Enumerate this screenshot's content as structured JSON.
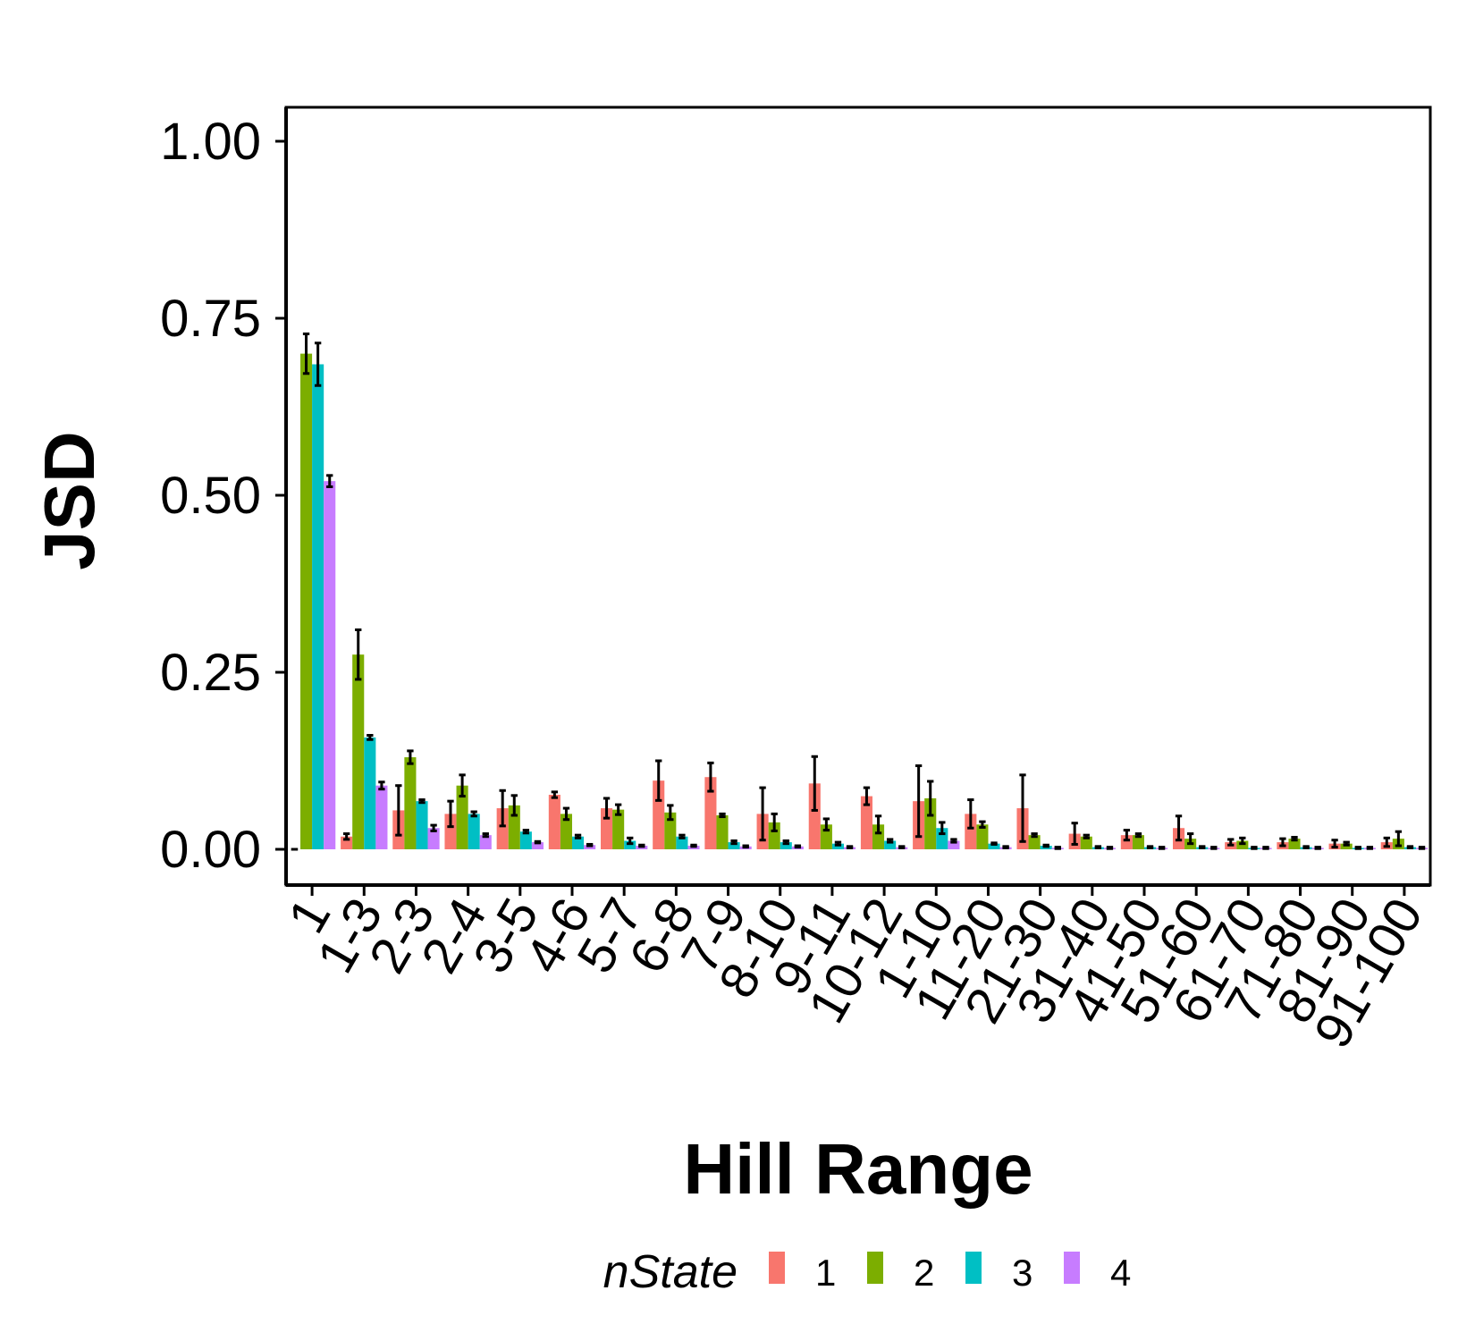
{
  "chart_data": {
    "type": "bar",
    "xlabel": "Hill Range",
    "ylabel": "JSD",
    "ylim": [
      -0.045,
      1.05
    ],
    "yticks": [
      "0.00",
      "0.25",
      "0.50",
      "0.75",
      "1.00"
    ],
    "ytick_values": [
      0,
      0.25,
      0.5,
      0.75,
      1.0
    ],
    "grid": false,
    "legend": {
      "title": "nState",
      "position": "bottom"
    },
    "categories": [
      "1",
      "1-3",
      "2-3",
      "2-4",
      "3-5",
      "4-6",
      "5-7",
      "6-8",
      "7-9",
      "8-10",
      "9-11",
      "10-12",
      "1-10",
      "11-20",
      "21-30",
      "31-40",
      "41-50",
      "51-60",
      "61-70",
      "71-80",
      "81-90",
      "91-100"
    ],
    "series": [
      {
        "name": "1",
        "color": "#F8766D",
        "values": [
          0.0,
          0.018,
          0.055,
          0.05,
          0.058,
          0.077,
          0.058,
          0.097,
          0.102,
          0.05,
          0.093,
          0.075,
          0.068,
          0.05,
          0.058,
          0.022,
          0.02,
          0.03,
          0.01,
          0.01,
          0.008,
          0.01
        ],
        "errors": [
          0.0,
          0.004,
          0.035,
          0.018,
          0.025,
          0.004,
          0.014,
          0.028,
          0.02,
          0.037,
          0.038,
          0.012,
          0.05,
          0.02,
          0.047,
          0.015,
          0.007,
          0.017,
          0.004,
          0.005,
          0.005,
          0.006
        ]
      },
      {
        "name": "2",
        "color": "#7CAE00",
        "values": [
          0.7,
          0.275,
          0.13,
          0.09,
          0.062,
          0.05,
          0.056,
          0.052,
          0.048,
          0.038,
          0.035,
          0.035,
          0.072,
          0.035,
          0.02,
          0.018,
          0.02,
          0.015,
          0.012,
          0.015,
          0.008,
          0.015
        ],
        "errors": [
          0.028,
          0.035,
          0.009,
          0.015,
          0.014,
          0.008,
          0.007,
          0.01,
          0.002,
          0.012,
          0.008,
          0.012,
          0.024,
          0.004,
          0.002,
          0.002,
          0.002,
          0.007,
          0.004,
          0.002,
          0.002,
          0.01
        ]
      },
      {
        "name": "3",
        "color": "#00BFC4",
        "values": [
          0.685,
          0.158,
          0.068,
          0.05,
          0.025,
          0.018,
          0.012,
          0.018,
          0.01,
          0.01,
          0.008,
          0.012,
          0.03,
          0.008,
          0.005,
          0.003,
          0.003,
          0.003,
          0.002,
          0.003,
          0.002,
          0.003
        ],
        "errors": [
          0.03,
          0.003,
          0.002,
          0.003,
          0.002,
          0.002,
          0.004,
          0.002,
          0.002,
          0.002,
          0.002,
          0.002,
          0.008,
          0.001,
          0.001,
          0.001,
          0.001,
          0.001,
          0.001,
          0.001,
          0.001,
          0.001
        ]
      },
      {
        "name": "4",
        "color": "#C77CFF",
        "values": [
          0.52,
          0.09,
          0.03,
          0.02,
          0.01,
          0.006,
          0.005,
          0.005,
          0.004,
          0.004,
          0.003,
          0.003,
          0.012,
          0.003,
          0.002,
          0.002,
          0.002,
          0.002,
          0.002,
          0.002,
          0.002,
          0.002
        ],
        "errors": [
          0.008,
          0.005,
          0.004,
          0.002,
          0.001,
          0.001,
          0.001,
          0.001,
          0.001,
          0.001,
          0.001,
          0.001,
          0.002,
          0.001,
          0.001,
          0.001,
          0.001,
          0.001,
          0.001,
          0.001,
          0.001,
          0.001
        ]
      }
    ]
  }
}
